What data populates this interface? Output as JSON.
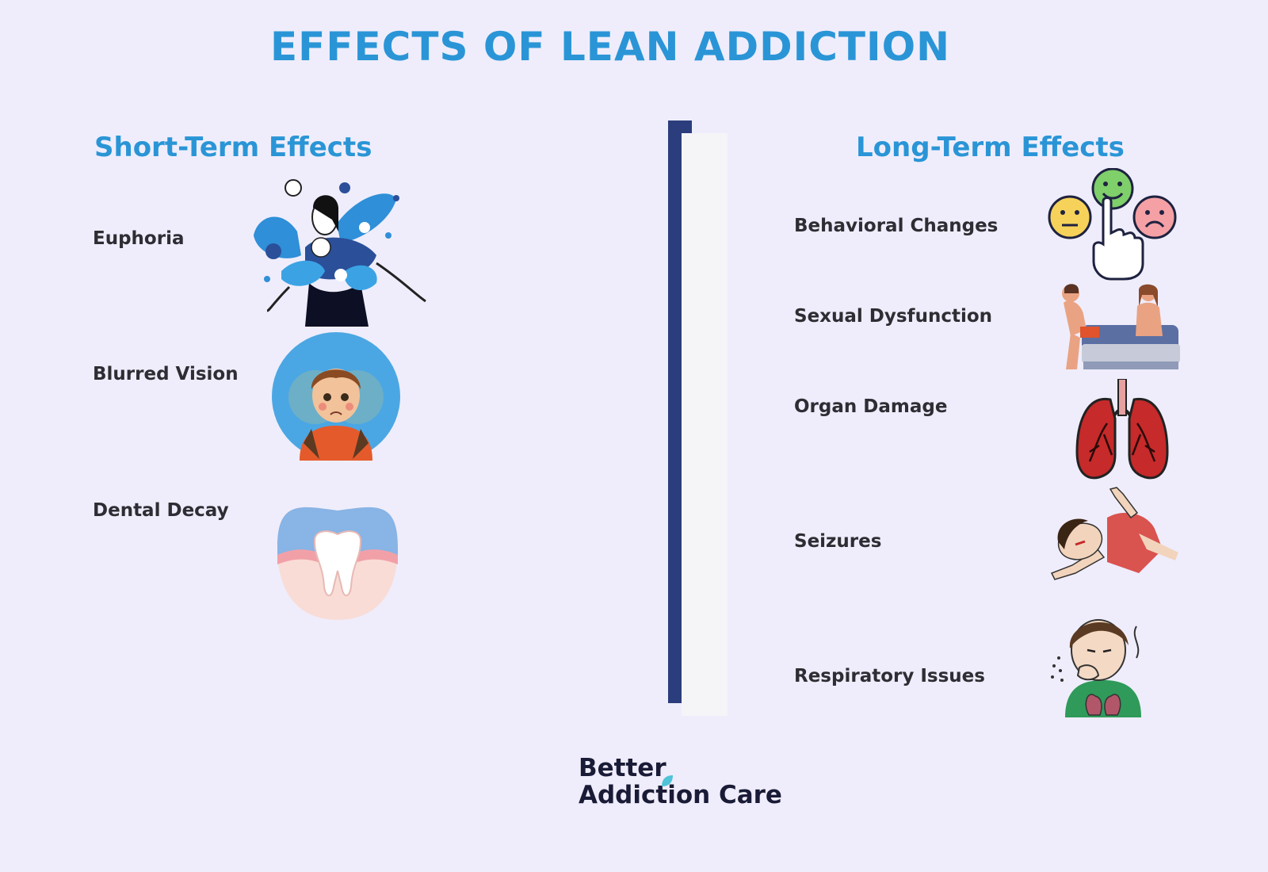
{
  "title": "EFFECTS OF LEAN ADDICTION",
  "short_term": {
    "heading": "Short-Term Effects",
    "items": [
      {
        "label": "Euphoria",
        "icon": "euphoria-woman-flowers-icon"
      },
      {
        "label": "Blurred Vision",
        "icon": "blurred-vision-boy-icon"
      },
      {
        "label": "Dental Decay",
        "icon": "tooth-icon"
      }
    ]
  },
  "long_term": {
    "heading": "Long-Term Effects",
    "items": [
      {
        "label": "Behavioral Changes",
        "icon": "mood-faces-hand-icon"
      },
      {
        "label": "Sexual Dysfunction",
        "icon": "couple-on-bed-icon"
      },
      {
        "label": "Organ Damage",
        "icon": "lungs-icon"
      },
      {
        "label": "Seizures",
        "icon": "seizure-person-icon"
      },
      {
        "label": "Respiratory Issues",
        "icon": "coughing-person-icon"
      }
    ]
  },
  "logo": {
    "line1": "Better",
    "line2": "Addiction Care"
  },
  "colors": {
    "background": "#efedfb",
    "accent": "#2a95d6",
    "divider": "#2b3d7c",
    "text": "#2d2d33"
  }
}
